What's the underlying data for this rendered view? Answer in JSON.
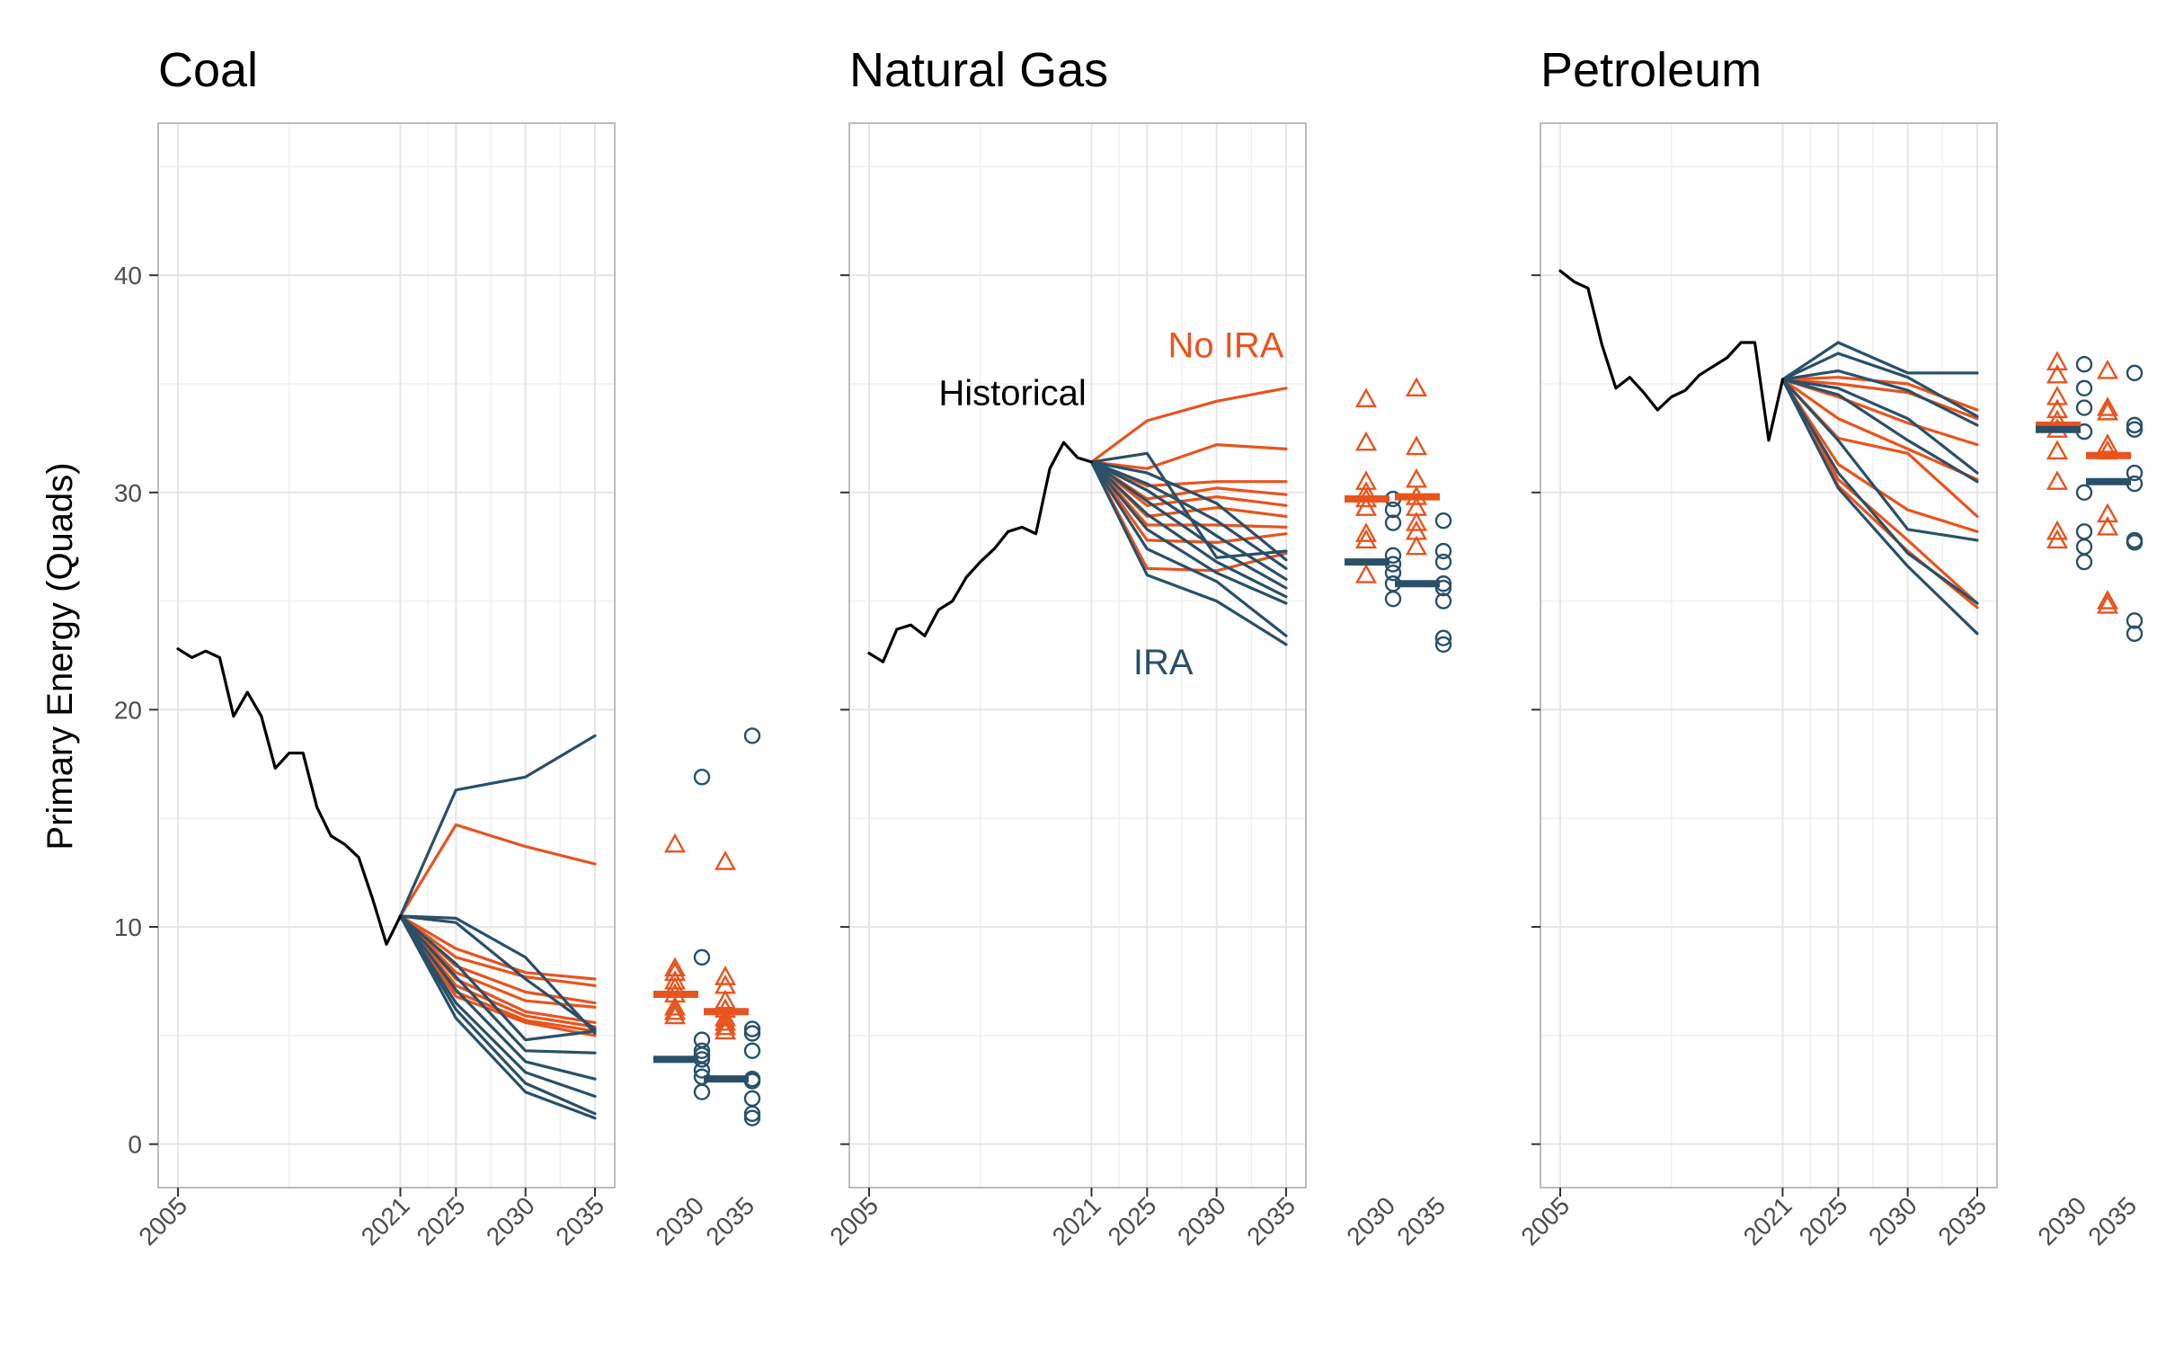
{
  "figure": {
    "ylabel": "Primary Energy (Quads)"
  },
  "chart_data": [
    {
      "type": "line",
      "title": "Coal",
      "ylabel": "Primary Energy (Quads)",
      "ylim": [
        -2,
        47
      ],
      "yticks": [
        0,
        10,
        20,
        30,
        40
      ],
      "xticks": [
        2005,
        2021,
        2025,
        2030,
        2035
      ],
      "summary_ticks": [
        2030,
        2035
      ],
      "grid": true,
      "historical": {
        "x": [
          2005,
          2006,
          2007,
          2008,
          2009,
          2010,
          2011,
          2012,
          2013,
          2014,
          2015,
          2016,
          2017,
          2018,
          2019,
          2020,
          2021
        ],
        "y": [
          22.8,
          22.4,
          22.7,
          22.4,
          19.7,
          20.8,
          19.7,
          17.3,
          18.0,
          18.0,
          15.5,
          14.2,
          13.8,
          13.2,
          11.3,
          9.2,
          10.5
        ]
      },
      "series_x": [
        2021,
        2025,
        2030,
        2035
      ],
      "no_ira": [
        [
          10.5,
          14.7,
          13.7,
          12.9
        ],
        [
          10.5,
          9.0,
          7.9,
          7.6
        ],
        [
          10.5,
          8.6,
          7.7,
          7.3
        ],
        [
          10.5,
          8.2,
          7.0,
          6.5
        ],
        [
          10.5,
          7.9,
          6.6,
          6.3
        ],
        [
          10.5,
          7.6,
          6.1,
          5.6
        ],
        [
          10.5,
          7.3,
          5.9,
          5.4
        ],
        [
          10.5,
          7.0,
          5.7,
          5.2
        ],
        [
          10.5,
          6.8,
          5.6,
          5.0
        ]
      ],
      "ira": [
        [
          10.5,
          16.3,
          16.9,
          18.8
        ],
        [
          10.5,
          10.4,
          8.6,
          5.1
        ],
        [
          10.5,
          10.2,
          7.6,
          5.3
        ],
        [
          10.5,
          8.3,
          4.8,
          5.2
        ],
        [
          10.5,
          7.7,
          4.3,
          4.2
        ],
        [
          10.5,
          7.1,
          3.8,
          3.0
        ],
        [
          10.5,
          6.5,
          3.3,
          2.2
        ],
        [
          10.5,
          6.2,
          2.8,
          1.4
        ],
        [
          10.5,
          5.8,
          2.4,
          1.2
        ]
      ],
      "summary_no_ira_2030": [
        13.8,
        8.1,
        7.9,
        7.5,
        7.2,
        6.9,
        6.3,
        6.1,
        5.9
      ],
      "summary_ira_2030": [
        16.9,
        8.6,
        4.8,
        4.3,
        4.1,
        3.9,
        3.4,
        3.1,
        2.4
      ],
      "median_no_ira_2030": 6.9,
      "median_ira_2030": 3.9,
      "summary_no_ira_2035": [
        13.0,
        7.7,
        7.3,
        6.6,
        6.2,
        5.8,
        5.6,
        5.4,
        5.2
      ],
      "summary_ira_2035": [
        18.8,
        5.3,
        5.1,
        4.3,
        3.0,
        2.9,
        2.1,
        1.4,
        1.2
      ],
      "median_no_ira_2035": 6.1,
      "median_ira_2035": 3.0
    },
    {
      "type": "line",
      "title": "Natural Gas",
      "ylim": [
        -2,
        47
      ],
      "yticks": [
        0,
        10,
        20,
        30,
        40
      ],
      "xticks": [
        2005,
        2021,
        2025,
        2030,
        2035
      ],
      "summary_ticks": [
        2030,
        2035
      ],
      "grid": true,
      "annotations": [
        {
          "text": "Historical",
          "x": 2010,
          "y": 34.6,
          "series": "historical"
        },
        {
          "text": "No IRA",
          "x": 2026.5,
          "y": 36.8,
          "series": "no_ira"
        },
        {
          "text": "IRA",
          "x": 2024,
          "y": 22.2,
          "series": "ira"
        }
      ],
      "historical": {
        "x": [
          2005,
          2006,
          2007,
          2008,
          2009,
          2010,
          2011,
          2012,
          2013,
          2014,
          2015,
          2016,
          2017,
          2018,
          2019,
          2020,
          2021
        ],
        "y": [
          22.6,
          22.2,
          23.7,
          23.9,
          23.4,
          24.6,
          25.0,
          26.1,
          26.8,
          27.4,
          28.2,
          28.4,
          28.1,
          31.1,
          32.3,
          31.6,
          31.4
        ]
      },
      "series_x": [
        2021,
        2025,
        2030,
        2035
      ],
      "no_ira": [
        [
          31.4,
          33.3,
          34.2,
          34.8
        ],
        [
          31.4,
          31.1,
          32.2,
          32.0
        ],
        [
          31.4,
          30.3,
          30.5,
          30.5
        ],
        [
          31.4,
          29.7,
          30.2,
          29.9
        ],
        [
          31.4,
          29.4,
          29.8,
          29.4
        ],
        [
          31.4,
          28.9,
          29.3,
          28.9
        ],
        [
          31.4,
          28.5,
          28.5,
          28.4
        ],
        [
          31.4,
          27.8,
          27.7,
          28.1
        ],
        [
          31.4,
          26.5,
          26.4,
          27.2
        ]
      ],
      "ira": [
        [
          31.4,
          31.8,
          27.0,
          27.3
        ],
        [
          31.4,
          30.9,
          29.5,
          26.9
        ],
        [
          31.4,
          30.4,
          28.7,
          26.5
        ],
        [
          31.4,
          30.1,
          28.0,
          26.0
        ],
        [
          31.4,
          29.6,
          27.4,
          25.6
        ],
        [
          31.4,
          29.0,
          26.8,
          25.2
        ],
        [
          31.4,
          28.3,
          26.3,
          24.9
        ],
        [
          31.4,
          27.4,
          25.9,
          23.4
        ],
        [
          31.4,
          26.2,
          25.0,
          23.0
        ]
      ],
      "summary_no_ira_2030": [
        34.3,
        32.3,
        30.5,
        30.0,
        29.7,
        29.3,
        28.1,
        27.8,
        26.2
      ],
      "summary_ira_2030": [
        29.7,
        29.2,
        28.6,
        27.1,
        26.7,
        26.3,
        25.8,
        25.1
      ],
      "median_no_ira_2030": 29.7,
      "median_ira_2030": 26.8,
      "summary_no_ira_2035": [
        34.8,
        32.1,
        30.6,
        29.8,
        29.3,
        28.6,
        28.2,
        27.5
      ],
      "summary_ira_2035": [
        28.7,
        27.3,
        26.8,
        25.8,
        25.6,
        25.0,
        23.3,
        23.0
      ],
      "median_no_ira_2035": 29.8,
      "median_ira_2035": 25.8
    },
    {
      "type": "line",
      "title": "Petroleum",
      "ylim": [
        -2,
        47
      ],
      "yticks": [
        0,
        10,
        20,
        30,
        40
      ],
      "xticks": [
        2005,
        2021,
        2025,
        2030,
        2035
      ],
      "summary_ticks": [
        2030,
        2035
      ],
      "grid": true,
      "historical": {
        "x": [
          2005,
          2006,
          2007,
          2008,
          2009,
          2010,
          2011,
          2012,
          2013,
          2014,
          2015,
          2016,
          2017,
          2018,
          2019,
          2020,
          2021
        ],
        "y": [
          40.2,
          39.7,
          39.4,
          36.8,
          34.8,
          35.3,
          34.6,
          33.8,
          34.4,
          34.7,
          35.4,
          35.8,
          36.2,
          36.9,
          36.9,
          32.4,
          35.2
        ]
      },
      "series_x": [
        2021,
        2025,
        2030,
        2035
      ],
      "no_ira": [
        [
          35.2,
          35.3,
          35.0,
          33.8
        ],
        [
          35.2,
          35.0,
          34.6,
          33.4
        ],
        [
          35.2,
          34.4,
          33.2,
          32.2
        ],
        [
          35.2,
          33.4,
          32.0,
          30.6
        ],
        [
          35.2,
          32.5,
          31.8,
          28.9
        ],
        [
          35.2,
          31.3,
          29.2,
          28.2
        ],
        [
          35.2,
          30.6,
          27.8,
          24.9
        ],
        [
          35.2,
          30.3,
          27.3,
          24.7
        ]
      ],
      "ira": [
        [
          35.2,
          36.9,
          35.5,
          35.5
        ],
        [
          35.2,
          36.4,
          35.3,
          33.5
        ],
        [
          35.2,
          35.6,
          34.7,
          33.1
        ],
        [
          35.2,
          34.8,
          33.4,
          30.9
        ],
        [
          35.2,
          34.5,
          32.4,
          30.5
        ],
        [
          35.2,
          32.4,
          28.3,
          27.8
        ],
        [
          35.2,
          30.9,
          27.2,
          24.9
        ],
        [
          35.2,
          30.2,
          26.6,
          23.5
        ]
      ],
      "summary_no_ira_2030": [
        36.0,
        35.4,
        34.4,
        33.8,
        33.3,
        32.9,
        31.9,
        30.5,
        28.2,
        27.8
      ],
      "summary_ira_2030": [
        35.9,
        34.8,
        33.9,
        32.8,
        30.0,
        28.2,
        27.5,
        26.8
      ],
      "median_no_ira_2030": 33.1,
      "median_ira_2030": 32.9,
      "summary_no_ira_2035": [
        35.6,
        33.9,
        33.7,
        32.2,
        31.9,
        29.0,
        28.4,
        25.0,
        24.8
      ],
      "summary_ira_2035": [
        35.5,
        33.1,
        32.9,
        30.9,
        30.4,
        27.8,
        27.7,
        24.1,
        23.5
      ],
      "median_no_ira_2035": 31.7,
      "median_ira_2035": 30.5
    }
  ],
  "colors": {
    "historical": "#000000",
    "no_ira": "#E8541E",
    "ira": "#2A5068",
    "panel_border": "#BDBDBD",
    "grid_major": "#E6E6E6",
    "grid_minor": "#F1F1F1",
    "tick_text": "#4D4D4D"
  }
}
